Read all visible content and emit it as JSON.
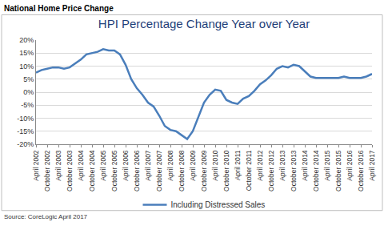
{
  "chart_data": {
    "type": "line",
    "header": "National Home Price Change",
    "title": "HPI Percentage Change Year over Year",
    "source": "Source: CoreLogic April 2017",
    "categories": [
      "April 2002",
      null,
      "October 2002",
      null,
      "April 2003",
      null,
      "October 2003",
      null,
      "April 2004",
      null,
      "October 2004",
      null,
      "April 2005",
      null,
      "October 2005",
      null,
      "April 2006",
      null,
      "October 2006",
      null,
      "April 2007",
      null,
      "October 2007",
      null,
      "April 2008",
      null,
      "October 2008",
      null,
      "April 2009",
      null,
      "October 2009",
      null,
      "April 2010",
      null,
      "October 2010",
      null,
      "April 2011",
      null,
      "October 2011",
      null,
      "April 2012",
      null,
      "October 2012",
      null,
      "April 2013",
      null,
      "October 2013",
      null,
      "April 2014",
      null,
      "October 2014",
      null,
      "April 2015",
      null,
      "October 2015",
      null,
      "April 2016",
      null,
      "October 2016",
      null,
      "April 2017"
    ],
    "series": [
      {
        "name": "Including Distressed Sales",
        "color": "#4a7ebb",
        "values": [
          7.5,
          8.5,
          9,
          9.5,
          9.5,
          9,
          9.5,
          11,
          12.5,
          14.5,
          15,
          15.5,
          16.5,
          16,
          16,
          14.5,
          10.5,
          5,
          1.5,
          -1,
          -4,
          -5.5,
          -9,
          -13,
          -14.5,
          -15,
          -16.5,
          -18,
          -15,
          -9.5,
          -4,
          -1,
          1,
          0.5,
          -3,
          -4,
          -4.5,
          -2.5,
          -1.5,
          0.5,
          3,
          4.5,
          6.5,
          9,
          10,
          9.5,
          10.5,
          10,
          8,
          6,
          5.5,
          5.5,
          5.5,
          5.5,
          5.5,
          6,
          5.5,
          5.5,
          5.5,
          6,
          7
        ]
      }
    ],
    "ylim": [
      -20,
      20
    ],
    "yticks": [
      {
        "value": 20,
        "label": "20%"
      },
      {
        "value": 15,
        "label": "15%"
      },
      {
        "value": 10,
        "label": "10%"
      },
      {
        "value": 5,
        "label": "5%"
      },
      {
        "value": 0,
        "label": "0%"
      },
      {
        "value": -5,
        "label": "-5%"
      },
      {
        "value": -10,
        "label": "-10%"
      },
      {
        "value": -15,
        "label": "-15%"
      },
      {
        "value": -20,
        "label": "-20%"
      }
    ],
    "grid": true,
    "legend": "bottom"
  }
}
